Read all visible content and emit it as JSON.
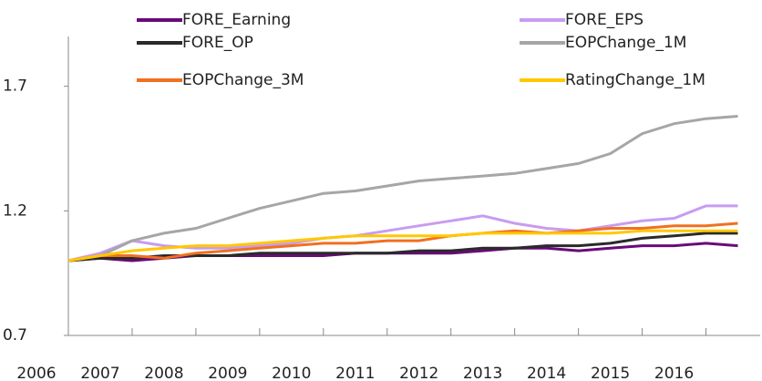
{
  "chart_data": {
    "type": "line",
    "categories": [
      "2006",
      null,
      "2007",
      null,
      "2008",
      null,
      "2009",
      null,
      "2010",
      null,
      "2011",
      null,
      "2012",
      null,
      "2013",
      null,
      "2014",
      null,
      "2015",
      null,
      "2016",
      null
    ],
    "ylim": [
      0.7,
      1.9
    ],
    "yticks": [
      0.7,
      1.2,
      1.7
    ],
    "grid": false,
    "legend": "top",
    "series": [
      {
        "name": "FORE_Earning",
        "color": "#6a0a7a",
        "values": [
          1.0,
          1.01,
          1.0,
          1.01,
          1.02,
          1.02,
          1.02,
          1.02,
          1.02,
          1.03,
          1.03,
          1.03,
          1.03,
          1.04,
          1.05,
          1.05,
          1.04,
          1.05,
          1.06,
          1.06,
          1.07,
          1.06
        ]
      },
      {
        "name": "FORE_EPS",
        "color": "#c89cf0",
        "values": [
          1.0,
          1.03,
          1.08,
          1.06,
          1.05,
          1.05,
          1.06,
          1.07,
          1.09,
          1.1,
          1.12,
          1.14,
          1.16,
          1.18,
          1.15,
          1.13,
          1.12,
          1.14,
          1.16,
          1.17,
          1.22,
          1.22
        ]
      },
      {
        "name": "FORE_OP",
        "color": "#2a2a2a",
        "values": [
          1.0,
          1.01,
          1.01,
          1.02,
          1.02,
          1.02,
          1.03,
          1.03,
          1.03,
          1.03,
          1.03,
          1.04,
          1.04,
          1.05,
          1.05,
          1.06,
          1.06,
          1.07,
          1.09,
          1.1,
          1.11,
          1.11
        ]
      },
      {
        "name": "EOPChange_1M",
        "color": "#a6a6a6",
        "values": [
          1.0,
          1.02,
          1.08,
          1.11,
          1.13,
          1.17,
          1.21,
          1.24,
          1.27,
          1.28,
          1.3,
          1.32,
          1.33,
          1.34,
          1.35,
          1.37,
          1.39,
          1.43,
          1.51,
          1.55,
          1.57,
          1.58
        ]
      },
      {
        "name": "EOPChange_3M",
        "color": "#f07020",
        "values": [
          1.0,
          1.02,
          1.02,
          1.01,
          1.03,
          1.04,
          1.05,
          1.06,
          1.07,
          1.07,
          1.08,
          1.08,
          1.1,
          1.11,
          1.12,
          1.11,
          1.12,
          1.13,
          1.13,
          1.14,
          1.14,
          1.15
        ]
      },
      {
        "name": "RatingChange_1M",
        "color": "#ffc800",
        "values": [
          1.0,
          1.02,
          1.04,
          1.05,
          1.06,
          1.06,
          1.07,
          1.08,
          1.09,
          1.1,
          1.1,
          1.1,
          1.1,
          1.11,
          1.11,
          1.11,
          1.11,
          1.11,
          1.12,
          1.12,
          1.12,
          1.12
        ]
      }
    ]
  }
}
